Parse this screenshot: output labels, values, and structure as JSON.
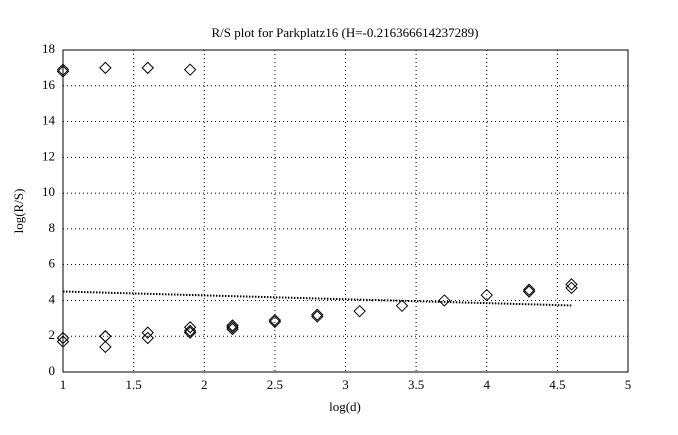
{
  "chart_data": {
    "type": "scatter",
    "title": "R/S plot for Parkplatz16 (H=-0.216366614237289)",
    "xlabel": "log(d)",
    "ylabel": "log(R/S)",
    "xlim": [
      1,
      5
    ],
    "xticks": [
      1,
      1.5,
      2,
      2.5,
      3,
      3.5,
      4,
      4.5,
      5
    ],
    "ylim": [
      0,
      18
    ],
    "yticks": [
      0,
      2,
      4,
      6,
      8,
      10,
      12,
      14,
      16,
      18
    ],
    "grid": true,
    "color": "#000000",
    "points": {
      "x": [
        1,
        1,
        1,
        1,
        1.3,
        1.3,
        1.3,
        1.3,
        1.6,
        1.6,
        1.6,
        1.9,
        1.9,
        1.9,
        1.9,
        2.2,
        2.2,
        2.2,
        2.5,
        2.5,
        2.8,
        2.8,
        3.1,
        3.4,
        3.7,
        4.0,
        4.3,
        4.3,
        4.6,
        4.6
      ],
      "y": [
        16.8,
        16.9,
        1.9,
        1.7,
        17.0,
        2.0,
        2.0,
        1.4,
        17.0,
        2.2,
        1.9,
        16.9,
        2.5,
        2.3,
        2.2,
        2.6,
        2.5,
        2.4,
        2.9,
        2.8,
        3.2,
        3.1,
        3.4,
        3.7,
        4.0,
        4.3,
        4.6,
        4.5,
        4.9,
        4.7
      ]
    },
    "fit": {
      "x": [
        1,
        4.6
      ],
      "y": [
        4.5,
        3.72
      ]
    }
  }
}
